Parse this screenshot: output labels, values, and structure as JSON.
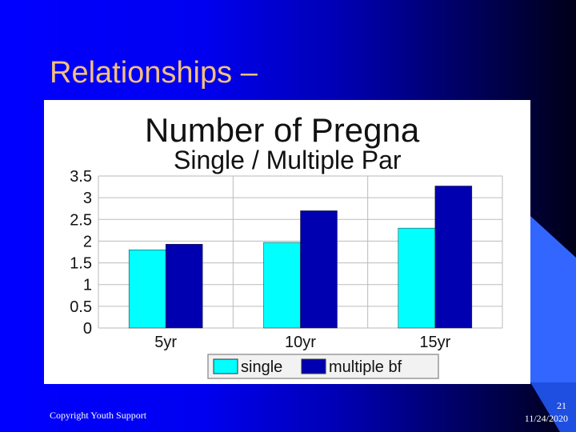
{
  "slide": {
    "title": "Relationships –",
    "footer_left": "Copyright Youth Support",
    "page_number": "21",
    "date": "11/24/2020"
  },
  "colors": {
    "background_left": "#0000ff",
    "background_right": "#000018",
    "title": "#f4c07a",
    "accent_shape": "#3366ff",
    "series_single": "#00ffff",
    "series_multiple": "#0000b0"
  },
  "chart_data": {
    "type": "bar",
    "title": "Number of Pregna",
    "subtitle": "Single / Multiple Par",
    "categories": [
      "5yr",
      "10yr",
      "15yr"
    ],
    "series": [
      {
        "name": "single",
        "values": [
          1.8,
          1.97,
          2.3
        ]
      },
      {
        "name": "multiple bf",
        "values": [
          1.93,
          2.7,
          3.27
        ]
      }
    ],
    "ylim": [
      0,
      3.5
    ],
    "yticks": [
      "0",
      "0.5",
      "1",
      "1.5",
      "2",
      "2.5",
      "3",
      "3.5"
    ],
    "grid": true,
    "legend": "bottom"
  }
}
